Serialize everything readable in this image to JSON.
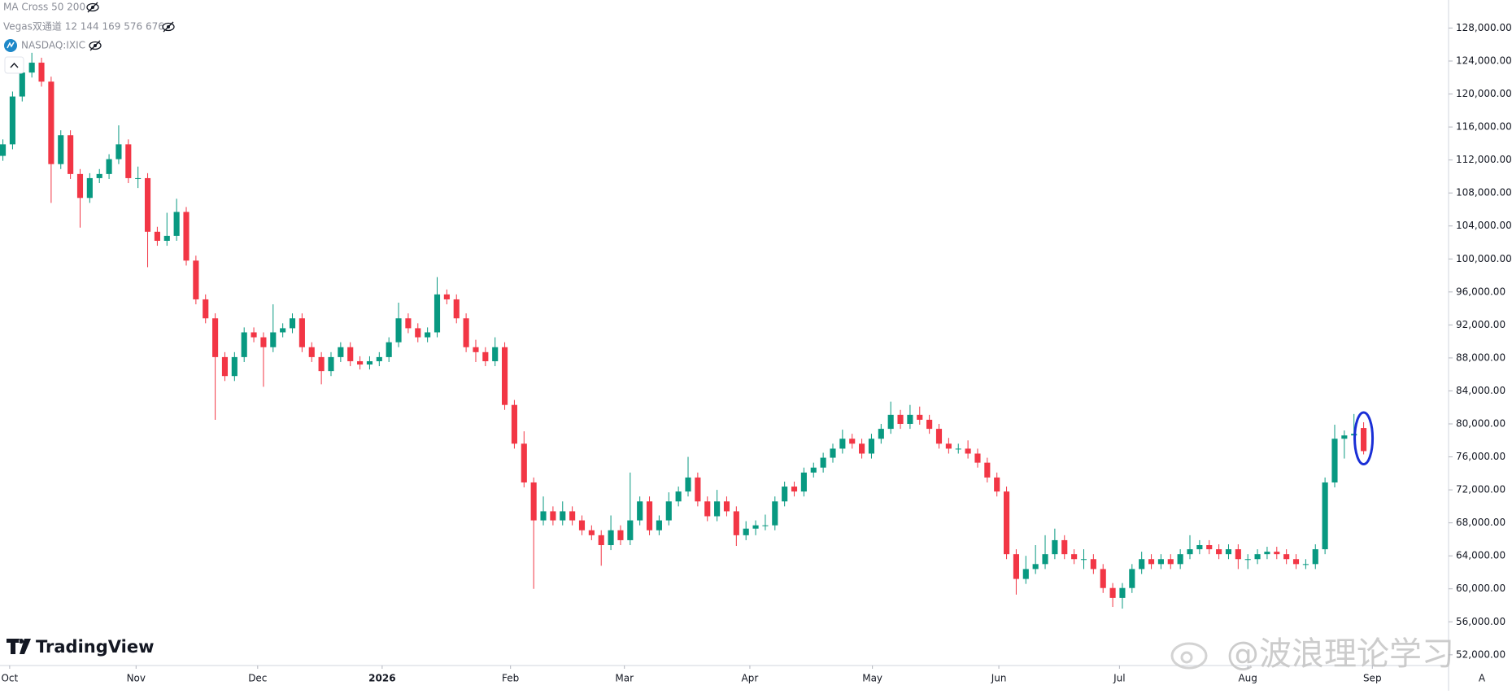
{
  "indicators": [
    "MA Cross 50 200",
    "Vegas双通道 12 144 169 576 676"
  ],
  "branding": "TradingView",
  "watermark": "@波浪理论学习",
  "scale_mode": "A",
  "chart_data": {
    "type": "candlestick",
    "title": "NASDAQ:IXIC",
    "up_color": "#089981",
    "down_color": "#f23645",
    "xlim": [
      -0.3,
      149.8
    ],
    "ylim": [
      50700,
      131400
    ],
    "xticks": [
      {
        "value": 0.7,
        "label": "Oct"
      },
      {
        "value": 13.8,
        "label": "Nov"
      },
      {
        "value": 26.4,
        "label": "Dec"
      },
      {
        "value": 39.3,
        "label": "2026"
      },
      {
        "value": 52.6,
        "label": "Feb"
      },
      {
        "value": 64.4,
        "label": "Mar"
      },
      {
        "value": 77.4,
        "label": "Apr"
      },
      {
        "value": 90.1,
        "label": "May"
      },
      {
        "value": 103.2,
        "label": "Jun"
      },
      {
        "value": 115.7,
        "label": "Jul"
      },
      {
        "value": 129,
        "label": "Aug"
      },
      {
        "value": 141.9,
        "label": "Sep"
      }
    ],
    "yticks": [
      {
        "value": 52000,
        "label": "52,000.00"
      },
      {
        "value": 56000,
        "label": "56,000.00"
      },
      {
        "value": 60000,
        "label": "60,000.00"
      },
      {
        "value": 64000,
        "label": "64,000.00"
      },
      {
        "value": 68000,
        "label": "68,000.00"
      },
      {
        "value": 72000,
        "label": "72,000.00"
      },
      {
        "value": 76000,
        "label": "76,000.00"
      },
      {
        "value": 80000,
        "label": "80,000.00"
      },
      {
        "value": 84000,
        "label": "84,000.00"
      },
      {
        "value": 88000,
        "label": "88,000.00"
      },
      {
        "value": 92000,
        "label": "92,000.00"
      },
      {
        "value": 96000,
        "label": "96,000.00"
      },
      {
        "value": 100000,
        "label": "100,000.00"
      },
      {
        "value": 104000,
        "label": "104,000.00"
      },
      {
        "value": 108000,
        "label": "108,000.00"
      },
      {
        "value": 112000,
        "label": "112,000.00"
      },
      {
        "value": 116000,
        "label": "116,000.00"
      },
      {
        "value": 120000,
        "label": "120,000.00"
      },
      {
        "value": 124000,
        "label": "124,000.00"
      },
      {
        "value": 128000,
        "label": "128,000.00"
      }
    ],
    "candles": [
      [
        112500,
        114500,
        111900,
        113900
      ],
      [
        113900,
        120300,
        113300,
        119700
      ],
      [
        119700,
        123200,
        119100,
        122600
      ],
      [
        122600,
        125000,
        122000,
        123800
      ],
      [
        123800,
        124400,
        120900,
        121500
      ],
      [
        121500,
        122100,
        106800,
        111500
      ],
      [
        111500,
        115600,
        110900,
        115000
      ],
      [
        115000,
        115600,
        109700,
        110300
      ],
      [
        110300,
        110900,
        103800,
        107400
      ],
      [
        107400,
        110400,
        106800,
        109800
      ],
      [
        109800,
        110900,
        109200,
        110300
      ],
      [
        110300,
        112700,
        109700,
        112100
      ],
      [
        112100,
        116200,
        111500,
        113900
      ],
      [
        113900,
        114500,
        109200,
        109800
      ],
      [
        109800,
        111200,
        108600,
        109800
      ],
      [
        109800,
        110400,
        99000,
        103300
      ],
      [
        103300,
        103900,
        101600,
        102200
      ],
      [
        102200,
        105600,
        101600,
        102800
      ],
      [
        102800,
        107300,
        102200,
        105700
      ],
      [
        105700,
        106300,
        99200,
        99800
      ],
      [
        99800,
        100400,
        94500,
        95100
      ],
      [
        95100,
        95700,
        92200,
        92800
      ],
      [
        92800,
        93400,
        80500,
        88100
      ],
      [
        88100,
        88700,
        85200,
        85800
      ],
      [
        85800,
        88700,
        85200,
        88100
      ],
      [
        88100,
        91700,
        87500,
        91100
      ],
      [
        91100,
        91700,
        89900,
        90500
      ],
      [
        90500,
        91100,
        84500,
        89300
      ],
      [
        89300,
        94500,
        88700,
        91100
      ],
      [
        91100,
        92200,
        90500,
        91600
      ],
      [
        91600,
        93400,
        91000,
        92800
      ],
      [
        92800,
        93400,
        88700,
        89300
      ],
      [
        89300,
        89900,
        87500,
        88100
      ],
      [
        88100,
        88700,
        84800,
        86400
      ],
      [
        86400,
        88700,
        85800,
        88100
      ],
      [
        88100,
        89900,
        87500,
        89300
      ],
      [
        89300,
        89900,
        87000,
        87600
      ],
      [
        87600,
        88200,
        86600,
        87200
      ],
      [
        87200,
        88200,
        86600,
        87600
      ],
      [
        87600,
        88700,
        87000,
        88100
      ],
      [
        88100,
        90500,
        87500,
        89900
      ],
      [
        89900,
        94700,
        89300,
        92800
      ],
      [
        92800,
        93400,
        91000,
        91600
      ],
      [
        91600,
        92200,
        89900,
        90500
      ],
      [
        90500,
        91700,
        89900,
        91100
      ],
      [
        91100,
        97800,
        90500,
        95700
      ],
      [
        95700,
        96300,
        94500,
        95100
      ],
      [
        95100,
        95700,
        92200,
        92800
      ],
      [
        92800,
        93400,
        88700,
        89300
      ],
      [
        89300,
        90200,
        87500,
        88700
      ],
      [
        88700,
        89300,
        87000,
        87600
      ],
      [
        87600,
        90500,
        87000,
        89300
      ],
      [
        89300,
        89900,
        81700,
        82300
      ],
      [
        82300,
        82900,
        77000,
        77600
      ],
      [
        77600,
        79100,
        72300,
        72900
      ],
      [
        72900,
        73500,
        60000,
        68300
      ],
      [
        68300,
        71200,
        67700,
        69400
      ],
      [
        69400,
        70000,
        67700,
        68300
      ],
      [
        68300,
        70600,
        67700,
        69400
      ],
      [
        69400,
        70000,
        67700,
        68300
      ],
      [
        68300,
        68900,
        66500,
        67100
      ],
      [
        67100,
        67700,
        65900,
        66500
      ],
      [
        66500,
        67100,
        62800,
        65300
      ],
      [
        65300,
        68900,
        64700,
        67100
      ],
      [
        67100,
        67700,
        65300,
        65900
      ],
      [
        65900,
        74100,
        65300,
        68300
      ],
      [
        68300,
        71200,
        67700,
        70600
      ],
      [
        70600,
        71200,
        66500,
        67100
      ],
      [
        67100,
        68900,
        66500,
        68300
      ],
      [
        68300,
        71700,
        67700,
        70600
      ],
      [
        70600,
        72400,
        70000,
        71800
      ],
      [
        71800,
        76000,
        71200,
        73500
      ],
      [
        73500,
        74100,
        70000,
        70600
      ],
      [
        70600,
        71200,
        68200,
        68800
      ],
      [
        68800,
        72000,
        68200,
        70600
      ],
      [
        70600,
        71200,
        68800,
        69400
      ],
      [
        69400,
        70000,
        65200,
        66500
      ],
      [
        66500,
        68200,
        65900,
        67300
      ],
      [
        67300,
        68300,
        66500,
        67700
      ],
      [
        67700,
        69000,
        67100,
        67700
      ],
      [
        67700,
        71200,
        67100,
        70600
      ],
      [
        70600,
        73000,
        70000,
        72400
      ],
      [
        72400,
        73000,
        71200,
        71800
      ],
      [
        71800,
        74700,
        71200,
        74100
      ],
      [
        74100,
        75300,
        73500,
        74700
      ],
      [
        74700,
        76500,
        74100,
        75900
      ],
      [
        75900,
        77600,
        75300,
        77000
      ],
      [
        77000,
        79300,
        76400,
        78200
      ],
      [
        78200,
        78800,
        77000,
        77600
      ],
      [
        77600,
        78200,
        75800,
        76400
      ],
      [
        76400,
        78800,
        75800,
        78200
      ],
      [
        78200,
        80000,
        77600,
        79400
      ],
      [
        79400,
        82700,
        78800,
        81100
      ],
      [
        81100,
        81700,
        79400,
        80000
      ],
      [
        80000,
        82300,
        79400,
        81100
      ],
      [
        81100,
        82100,
        79900,
        80500
      ],
      [
        80500,
        81100,
        78800,
        79400
      ],
      [
        79400,
        80000,
        77000,
        77600
      ],
      [
        77600,
        78300,
        76400,
        77000
      ],
      [
        77000,
        77600,
        76400,
        77000
      ],
      [
        77000,
        78000,
        75800,
        76400
      ],
      [
        76400,
        77000,
        74700,
        75300
      ],
      [
        75300,
        75900,
        72900,
        73500
      ],
      [
        73500,
        74100,
        71200,
        71800
      ],
      [
        71800,
        72400,
        63600,
        64200
      ],
      [
        64200,
        64800,
        59300,
        61200
      ],
      [
        61200,
        64000,
        60600,
        62400
      ],
      [
        62400,
        65300,
        61800,
        63000
      ],
      [
        63000,
        66500,
        62400,
        64200
      ],
      [
        64200,
        67300,
        63600,
        65900
      ],
      [
        65900,
        66500,
        63600,
        64200
      ],
      [
        64200,
        64800,
        63000,
        63600
      ],
      [
        63600,
        64800,
        62400,
        63600
      ],
      [
        63600,
        64200,
        61800,
        62400
      ],
      [
        62400,
        63000,
        59500,
        60100
      ],
      [
        60100,
        60700,
        57800,
        58900
      ],
      [
        58900,
        60700,
        57600,
        60100
      ],
      [
        60100,
        63000,
        59500,
        62400
      ],
      [
        62400,
        64500,
        61800,
        63600
      ],
      [
        63600,
        64200,
        62400,
        63000
      ],
      [
        63000,
        64200,
        62400,
        63600
      ],
      [
        63600,
        64200,
        62400,
        63000
      ],
      [
        63000,
        64800,
        62400,
        64200
      ],
      [
        64200,
        66500,
        63600,
        64800
      ],
      [
        64800,
        65900,
        64200,
        65300
      ],
      [
        65300,
        65900,
        64200,
        64800
      ],
      [
        64800,
        65400,
        63600,
        64200
      ],
      [
        64200,
        65400,
        63600,
        64800
      ],
      [
        64800,
        65400,
        62400,
        63600
      ],
      [
        63600,
        64200,
        62400,
        63600
      ],
      [
        63600,
        64800,
        63000,
        64200
      ],
      [
        64200,
        65100,
        63600,
        64500
      ],
      [
        64500,
        65100,
        63600,
        64200
      ],
      [
        64200,
        64800,
        63000,
        63600
      ],
      [
        63600,
        64200,
        62400,
        63000
      ],
      [
        63000,
        63600,
        62400,
        63000
      ],
      [
        63000,
        65400,
        62400,
        64800
      ],
      [
        64800,
        73500,
        64200,
        72900
      ],
      [
        72900,
        79900,
        72300,
        78200
      ],
      [
        78200,
        79200,
        75800,
        78600
      ],
      [
        78600,
        81200,
        78000,
        78800
      ],
      [
        79500,
        80200,
        76300,
        76700
      ]
    ]
  }
}
